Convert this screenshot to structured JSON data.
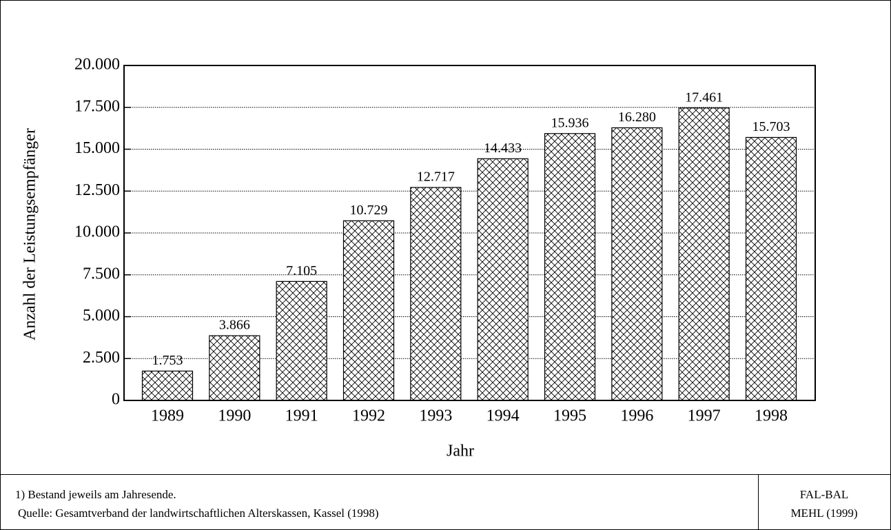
{
  "chart_data": {
    "type": "bar",
    "y_label": "Anzahl der Leistungsempfänger",
    "x_label": "Jahr",
    "categories": [
      "1989",
      "1990",
      "1991",
      "1992",
      "1993",
      "1994",
      "1995",
      "1996",
      "1997",
      "1998"
    ],
    "values": [
      1753,
      3866,
      7105,
      10729,
      12717,
      14433,
      15936,
      16280,
      17461,
      15703
    ],
    "value_labels": [
      "1.753",
      "3.866",
      "7.105",
      "10.729",
      "12.717",
      "14.433",
      "15.936",
      "16.280",
      "17.461",
      "15.703"
    ],
    "color": "#000000",
    "ylim": [
      0,
      20000
    ],
    "yticks": [
      0,
      {
        "value": 2500,
        "label": "2.500"
      },
      {
        "value": 5000,
        "label": "5.000"
      },
      {
        "value": 7500,
        "label": "7.500"
      },
      {
        "value": 10000,
        "label": "10.000"
      },
      {
        "value": 12500,
        "label": "12.500"
      },
      {
        "value": 15000,
        "label": "15.000"
      },
      {
        "value": 17500,
        "label": "17.500"
      },
      {
        "value": 20000,
        "label": "20.000"
      }
    ],
    "grid": true
  },
  "footer": {
    "note": "1) Bestand jeweils am Jahresende.",
    "source": "Quelle: Gesamtverband der landwirtschaftlichen Alterskassen, Kassel (1998)",
    "credit": [
      "FAL-BAL",
      "MEHL (1999)"
    ]
  }
}
